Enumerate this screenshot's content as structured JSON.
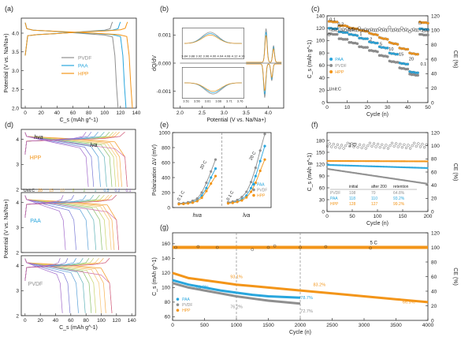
{
  "colors": {
    "pvdf": "#8f8f8f",
    "paa": "#29a6dd",
    "hpp": "#f39519",
    "black": "#222222",
    "dash": "#888888"
  },
  "chart_data": [
    {
      "panel": "(a)",
      "type": "line",
      "xlabel": "C_s (mAh g^-1)",
      "ylabel": "Potential (V vs. Na/Na+)",
      "xlim": [
        -5,
        140
      ],
      "ylim": [
        2.0,
        4.4
      ],
      "xticks": [
        "0",
        "20",
        "40",
        "60",
        "80",
        "100",
        "120",
        "140"
      ],
      "yticks": [
        "2.0",
        "2.5",
        "3.0",
        "3.5",
        "4.0"
      ],
      "legend": [
        "PVDF",
        "PAA",
        "HPP"
      ],
      "series": [
        {
          "name": "PVDF",
          "charge": [
            [
              0,
              3.4
            ],
            [
              3,
              3.93
            ],
            [
              15,
              3.96
            ],
            [
              40,
              3.99
            ],
            [
              60,
              4.02
            ],
            [
              85,
              4.06
            ],
            [
              100,
              4.08
            ],
            [
              107,
              4.12
            ],
            [
              109,
              4.25
            ],
            [
              110,
              4.3
            ]
          ],
          "discharge": [
            [
              0,
              4.28
            ],
            [
              2,
              4.12
            ],
            [
              10,
              4.08
            ],
            [
              30,
              4.06
            ],
            [
              55,
              4.02
            ],
            [
              80,
              3.98
            ],
            [
              100,
              3.95
            ],
            [
              110,
              3.9
            ],
            [
              113,
              3.4
            ],
            [
              115,
              2.6
            ],
            [
              117,
              2.0
            ]
          ]
        },
        {
          "name": "PAA",
          "charge": [
            [
              0,
              3.4
            ],
            [
              3,
              3.93
            ],
            [
              15,
              3.96
            ],
            [
              40,
              3.99
            ],
            [
              60,
              4.02
            ],
            [
              85,
              4.05
            ],
            [
              110,
              4.08
            ],
            [
              117,
              4.12
            ],
            [
              119,
              4.25
            ],
            [
              120,
              4.3
            ]
          ],
          "discharge": [
            [
              0,
              4.28
            ],
            [
              2,
              4.12
            ],
            [
              10,
              4.08
            ],
            [
              30,
              4.06
            ],
            [
              60,
              4.02
            ],
            [
              90,
              3.99
            ],
            [
              110,
              3.96
            ],
            [
              120,
              3.91
            ],
            [
              123,
              3.4
            ],
            [
              125,
              2.6
            ],
            [
              127,
              2.0
            ]
          ]
        },
        {
          "name": "HPP",
          "charge": [
            [
              0,
              3.4
            ],
            [
              3,
              3.93
            ],
            [
              15,
              3.96
            ],
            [
              40,
              3.99
            ],
            [
              70,
              4.03
            ],
            [
              100,
              4.06
            ],
            [
              120,
              4.09
            ],
            [
              126,
              4.13
            ],
            [
              128,
              4.25
            ],
            [
              129,
              4.3
            ]
          ],
          "discharge": [
            [
              0,
              4.28
            ],
            [
              2,
              4.12
            ],
            [
              10,
              4.08
            ],
            [
              30,
              4.06
            ],
            [
              60,
              4.03
            ],
            [
              95,
              3.99
            ],
            [
              118,
              3.96
            ],
            [
              128,
              3.91
            ],
            [
              131,
              3.4
            ],
            [
              133,
              2.6
            ],
            [
              135,
              2.0
            ]
          ]
        }
      ]
    },
    {
      "panel": "(b)",
      "type": "line",
      "xlabel": "Potential (V vs. Na/Na+)",
      "ylabel": "dQ/dV",
      "xlim": [
        1.85,
        4.35
      ],
      "ylim": [
        -0.0016,
        0.0016
      ],
      "xticks": [
        "2.0",
        "2.5",
        "3.0",
        "3.5",
        "4.0"
      ],
      "yticks": [
        "-0.001",
        "0.000",
        "0.001"
      ],
      "inset_xticks": [
        "3.84",
        "3.88",
        "3.92",
        "3.96",
        "4.00",
        "4.04",
        "4.08",
        "4.12",
        "4.16"
      ],
      "inset2_xticks": [
        "3.51",
        "3.56",
        "3.61",
        "3.66",
        "3.71",
        "3.76"
      ]
    },
    {
      "panel": "(c)",
      "type": "scatter",
      "xlabel": "Cycle (n)",
      "ylabel": "C_s (mAh g^-1)",
      "y2label": "CE (%)",
      "xlim": [
        0,
        50
      ],
      "ylim": [
        0,
        140
      ],
      "y2lim": [
        0,
        120
      ],
      "xticks": [
        "0",
        "10",
        "20",
        "30",
        "40",
        "50"
      ],
      "yticks": [
        "0",
        "20",
        "40",
        "60",
        "80",
        "100",
        "120",
        "140"
      ],
      "y2ticks": [
        "0",
        "20",
        "40",
        "60",
        "80",
        "100",
        "120"
      ],
      "rate_labels": [
        "0.1",
        "0.2",
        "0.5",
        "1",
        "2",
        "5",
        "10",
        "15",
        "20",
        "0.1"
      ],
      "unit_label": "Unit:C",
      "legend": [
        "PAA",
        "PVDF",
        "HPP"
      ],
      "series": [
        {
          "name": "HPP",
          "values": [
            131,
            131,
            130,
            130,
            130,
            124,
            124,
            124,
            124,
            123,
            121,
            120,
            120,
            119,
            119,
            117,
            116,
            116,
            115,
            115,
            112,
            111,
            110,
            110,
            109,
            105,
            104,
            103,
            103,
            102,
            97,
            96,
            95,
            95,
            94,
            88,
            87,
            87,
            86,
            86,
            80,
            79,
            79,
            78,
            78,
            130,
            129,
            129,
            129,
            128
          ]
        },
        {
          "name": "PAA",
          "values": [
            120,
            120,
            119,
            119,
            119,
            114,
            114,
            113,
            113,
            113,
            110,
            110,
            109,
            109,
            108,
            104,
            104,
            103,
            103,
            103,
            98,
            97,
            97,
            96,
            96,
            90,
            89,
            89,
            88,
            88,
            80,
            79,
            79,
            78,
            78,
            64,
            63,
            63,
            62,
            62,
            50,
            49,
            49,
            48,
            48,
            119,
            119,
            118,
            118,
            118
          ]
        },
        {
          "name": "PVDF",
          "values": [
            111,
            111,
            110,
            110,
            110,
            103,
            103,
            102,
            102,
            102,
            97,
            97,
            96,
            96,
            95,
            90,
            90,
            89,
            89,
            89,
            84,
            84,
            83,
            83,
            82,
            76,
            76,
            75,
            75,
            74,
            67,
            66,
            66,
            65,
            65,
            56,
            55,
            55,
            54,
            54,
            46,
            45,
            45,
            44,
            44,
            110,
            110,
            109,
            109,
            109
          ]
        }
      ],
      "ce_values": [
        94,
        101,
        100,
        101,
        100,
        105,
        100,
        101,
        100,
        102,
        100,
        100,
        101,
        100,
        100,
        103,
        100,
        100,
        101,
        100,
        100,
        101,
        100,
        100,
        100,
        102,
        100,
        101,
        100,
        100,
        104,
        100,
        100,
        101,
        100,
        100,
        103,
        100,
        101,
        100,
        98,
        100,
        101,
        100,
        100,
        110,
        100,
        99,
        100,
        100
      ]
    },
    {
      "panel": "(d)",
      "type": "line",
      "xlabel": "C_s (mAh g^-1)",
      "ylabel": "Potential (V vs. Na/Na+)",
      "xlim": [
        -5,
        145
      ],
      "ylim": [
        2.0,
        4.4
      ],
      "xticks": [
        "0",
        "20",
        "40",
        "60",
        "80",
        "100",
        "120",
        "140"
      ],
      "yticks": [
        "2",
        "3",
        "4"
      ],
      "subpanels": [
        "HPP",
        "PAA",
        "PVDF"
      ],
      "top_labels": [
        "hva",
        "lva"
      ],
      "rate_labels": [
        "Unit:C",
        "20",
        "15",
        "10",
        "5",
        "2",
        "1",
        "0.5",
        "0.2",
        "0.1"
      ],
      "capacities": {
        "HPP": [
          131,
          124,
          120,
          116,
          111,
          104,
          96,
          87,
          80,
          131
        ],
        "PAA": [
          120,
          114,
          110,
          104,
          98,
          90,
          80,
          64,
          50,
          120
        ],
        "PVDF": [
          111,
          103,
          97,
          90,
          84,
          76,
          67,
          56,
          46,
          111
        ]
      }
    },
    {
      "panel": "(e)",
      "type": "line",
      "ylabel": "Polarization ΔV (mV)",
      "ylim": [
        0,
        1000
      ],
      "yticks": [
        "0",
        "200",
        "400",
        "600",
        "800",
        "1000"
      ],
      "groups": [
        "hva",
        "lva"
      ],
      "rate_low": "0.1 C",
      "rate_high": "20 C",
      "legend": [
        "PAA",
        "PVDF",
        "HPP"
      ],
      "series": [
        {
          "name": "PAA",
          "hva": [
            50,
            55,
            62,
            75,
            100,
            160,
            260,
            400,
            520
          ],
          "lva": [
            60,
            70,
            85,
            110,
            160,
            260,
            420,
            620,
            820
          ]
        },
        {
          "name": "PVDF",
          "hva": [
            55,
            60,
            70,
            90,
            120,
            200,
            330,
            480,
            640
          ],
          "lva": [
            70,
            80,
            100,
            140,
            210,
            340,
            530,
            760,
            980
          ]
        },
        {
          "name": "HPP",
          "hva": [
            45,
            48,
            55,
            65,
            85,
            130,
            220,
            320,
            420
          ],
          "lva": [
            55,
            62,
            75,
            95,
            135,
            210,
            330,
            490,
            640
          ]
        }
      ]
    },
    {
      "panel": "(f)",
      "type": "scatter",
      "xlabel": "Cycle (n)",
      "ylabel": "C_s (mAh g^-1)",
      "y2label": "CE (%)",
      "xlim": [
        0,
        200
      ],
      "ylim": [
        0,
        200
      ],
      "y2lim": [
        0,
        120
      ],
      "xticks": [
        "0",
        "50",
        "100",
        "150",
        "200"
      ],
      "yticks": [
        "0",
        "30",
        "60",
        "90",
        "120",
        "150",
        "180"
      ],
      "y2ticks": [
        "0",
        "20",
        "40",
        "60",
        "80",
        "100",
        "120"
      ],
      "rate": "1 C",
      "table": {
        "header": [
          "",
          "initial",
          "after 200",
          "retention"
        ],
        "rows": [
          [
            "PVDF",
            "108",
            "70",
            "64.8%"
          ],
          [
            "PAA",
            "118",
            "110",
            "93.2%"
          ],
          [
            "HPP",
            "128",
            "127",
            "99.2%"
          ]
        ]
      },
      "series": [
        {
          "name": "HPP",
          "start": 128,
          "end": 127
        },
        {
          "name": "PAA",
          "start": 118,
          "end": 110
        },
        {
          "name": "PVDF",
          "start": 108,
          "end": 70
        }
      ]
    },
    {
      "panel": "(g)",
      "type": "scatter",
      "xlabel": "Cycle (n)",
      "ylabel": "C_s (mAh g^-1)",
      "y2label": "CE (%)",
      "xlim": [
        0,
        4000
      ],
      "ylim": [
        55,
        175
      ],
      "y2lim": [
        0,
        120
      ],
      "xticks": [
        "0",
        "500",
        "1000",
        "1500",
        "2000",
        "2500",
        "3000",
        "3500",
        "4000"
      ],
      "yticks": [
        "60",
        "80",
        "100",
        "120",
        "140",
        "160"
      ],
      "y2ticks": [
        "0",
        "20",
        "40",
        "60",
        "80",
        "100",
        "120"
      ],
      "rate": "5 C",
      "legend": [
        "PAA",
        "PVDF",
        "HPP"
      ],
      "annotations": [
        "93.1%",
        "81.8%",
        "83.2%",
        "78.7%",
        "76.2%",
        "72.7%",
        "66.5%"
      ],
      "series": [
        {
          "name": "HPP",
          "points": [
            [
              0,
              120
            ],
            [
              250,
              113
            ],
            [
              500,
              110
            ],
            [
              750,
              107
            ],
            [
              1000,
              104
            ],
            [
              1250,
              102
            ],
            [
              1500,
              100
            ],
            [
              1750,
              98
            ],
            [
              2000,
              96
            ],
            [
              2500,
              92
            ],
            [
              3000,
              88
            ],
            [
              3500,
              84
            ],
            [
              4000,
              80
            ]
          ]
        },
        {
          "name": "PAA",
          "points": [
            [
              0,
              110
            ],
            [
              250,
              104
            ],
            [
              500,
              100
            ],
            [
              750,
              96
            ],
            [
              1000,
              93
            ],
            [
              1250,
              90
            ],
            [
              1500,
              88
            ],
            [
              1750,
              87
            ],
            [
              2000,
              86
            ]
          ]
        },
        {
          "name": "PVDF",
          "points": [
            [
              0,
              106
            ],
            [
              250,
              100
            ],
            [
              500,
              96
            ],
            [
              750,
              92
            ],
            [
              1000,
              88
            ],
            [
              1250,
              85
            ],
            [
              1500,
              82
            ],
            [
              1750,
              80
            ],
            [
              2000,
              78
            ]
          ]
        }
      ]
    }
  ]
}
